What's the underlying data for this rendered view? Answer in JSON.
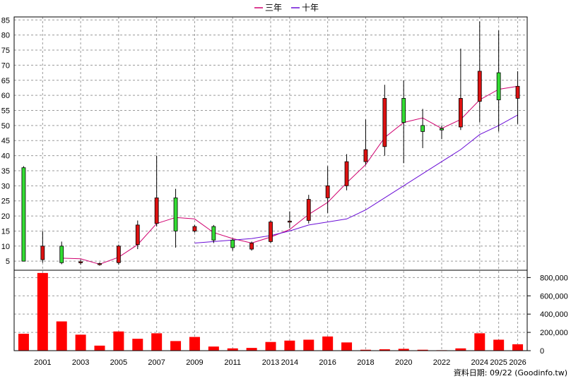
{
  "legend": {
    "items": [
      {
        "label": "三年",
        "color": "#d0006f"
      },
      {
        "label": "十年",
        "color": "#6a0dd6"
      }
    ]
  },
  "footer": {
    "text": "資料日期: 09/22 (Goodinfo.tw)"
  },
  "colors": {
    "up_candle": "#dd1111",
    "down_candle": "#33dd33",
    "volume_bar": "#ff0000",
    "grid": "#9a9a9a"
  },
  "chart_data": {
    "type": "candlestick",
    "price_axis": {
      "min": 2,
      "max": 86,
      "ticks": [
        5,
        10,
        15,
        20,
        25,
        30,
        35,
        40,
        45,
        50,
        55,
        60,
        65,
        70,
        75,
        80,
        85
      ]
    },
    "volume_axis": {
      "min": 0,
      "max": 880000,
      "ticks": [
        0,
        200000,
        400000,
        600000,
        800000
      ],
      "tick_labels": [
        "0",
        "200,000",
        "400,000",
        "600,000",
        "800,000"
      ]
    },
    "x_labels": [
      {
        "year": 2001,
        "label": "2001"
      },
      {
        "year": 2003,
        "label": "2003"
      },
      {
        "year": 2005,
        "label": "2005"
      },
      {
        "year": 2007,
        "label": "2007"
      },
      {
        "year": 2009,
        "label": "2009"
      },
      {
        "year": 2011,
        "label": "2011"
      },
      {
        "year": 2013,
        "label": "2013"
      },
      {
        "year": 2014,
        "label": "2014"
      },
      {
        "year": 2016,
        "label": "2016"
      },
      {
        "year": 2018,
        "label": "2018"
      },
      {
        "year": 2020,
        "label": "2020"
      },
      {
        "year": 2022,
        "label": "2022"
      },
      {
        "year": 2024,
        "label": "2024"
      },
      {
        "year": 2025,
        "label": "2025"
      },
      {
        "year": 2026,
        "label": "2026"
      }
    ],
    "candles": [
      {
        "year": 2000,
        "open": 36,
        "close": 5,
        "high": 36.5,
        "low": 5,
        "volume": 185000
      },
      {
        "year": 2001,
        "open": 5.5,
        "close": 10,
        "high": 15,
        "low": 4.5,
        "volume": 850000
      },
      {
        "year": 2002,
        "open": 10,
        "close": 4.5,
        "high": 11.5,
        "low": 4,
        "volume": 320000
      },
      {
        "year": 2003,
        "open": 4.5,
        "close": 4.8,
        "high": 5.5,
        "low": 3.8,
        "volume": 175000
      },
      {
        "year": 2004,
        "open": 4,
        "close": 4.2,
        "high": 4.6,
        "low": 3.5,
        "volume": 55000
      },
      {
        "year": 2005,
        "open": 4.5,
        "close": 10,
        "high": 10.5,
        "low": 3.8,
        "volume": 210000
      },
      {
        "year": 2006,
        "open": 10.5,
        "close": 17,
        "high": 18.5,
        "low": 9,
        "volume": 130000
      },
      {
        "year": 2007,
        "open": 17.5,
        "close": 26,
        "high": 40,
        "low": 16.5,
        "volume": 190000
      },
      {
        "year": 2008,
        "open": 26,
        "close": 15,
        "high": 29,
        "low": 9.5,
        "volume": 105000
      },
      {
        "year": 2009,
        "open": 15,
        "close": 16.5,
        "high": 17,
        "low": 14.5,
        "volume": 150000
      },
      {
        "year": 2010,
        "open": 16.5,
        "close": 12,
        "high": 17,
        "low": 11,
        "volume": 45000
      },
      {
        "year": 2011,
        "open": 12,
        "close": 9.5,
        "high": 12.5,
        "low": 8.5,
        "volume": 25000
      },
      {
        "year": 2012,
        "open": 9,
        "close": 11,
        "high": 11.5,
        "low": 8.5,
        "volume": 30000
      },
      {
        "year": 2013,
        "open": 11.5,
        "close": 18,
        "high": 18.5,
        "low": 11,
        "volume": 95000
      },
      {
        "year": 2014,
        "open": 18,
        "close": 18.3,
        "high": 21.5,
        "low": 16,
        "volume": 110000
      },
      {
        "year": 2015,
        "open": 18.5,
        "close": 25.5,
        "high": 27,
        "low": 17.5,
        "volume": 120000
      },
      {
        "year": 2016,
        "open": 26,
        "close": 30,
        "high": 36.5,
        "low": 21,
        "volume": 155000
      },
      {
        "year": 2017,
        "open": 30,
        "close": 38,
        "high": 40.5,
        "low": 28.5,
        "volume": 90000
      },
      {
        "year": 2018,
        "open": 38,
        "close": 42,
        "high": 52,
        "low": 37,
        "volume": 10000
      },
      {
        "year": 2019,
        "open": 43,
        "close": 59,
        "high": 63.5,
        "low": 40,
        "volume": 15000
      },
      {
        "year": 2020,
        "open": 59,
        "close": 51,
        "high": 65,
        "low": 37.5,
        "volume": 20000
      },
      {
        "year": 2021,
        "open": 50,
        "close": 48,
        "high": 55.5,
        "low": 42.5,
        "volume": 10000
      },
      {
        "year": 2022,
        "open": 49,
        "close": 48.5,
        "high": 50,
        "low": 45.5,
        "volume": 5000
      },
      {
        "year": 2023,
        "open": 49.5,
        "close": 59,
        "high": 75.5,
        "low": 48.5,
        "volume": 25000
      },
      {
        "year": 2024,
        "open": 58,
        "close": 68,
        "high": 84.5,
        "low": 51,
        "volume": 190000
      },
      {
        "year": 2025,
        "open": 67.5,
        "close": 58.5,
        "high": 81.5,
        "low": 48,
        "volume": 120000
      },
      {
        "year": 2026,
        "open": 59,
        "close": 63,
        "high": 68,
        "low": 50.5,
        "volume": 70000
      }
    ],
    "ma3": [
      {
        "year": 2002,
        "value": 6
      },
      {
        "year": 2003,
        "value": 5.8
      },
      {
        "year": 2004,
        "value": 4
      },
      {
        "year": 2005,
        "value": 6.3
      },
      {
        "year": 2006,
        "value": 10.5
      },
      {
        "year": 2007,
        "value": 17.5
      },
      {
        "year": 2008,
        "value": 19.5
      },
      {
        "year": 2009,
        "value": 19
      },
      {
        "year": 2010,
        "value": 14.5
      },
      {
        "year": 2011,
        "value": 12.5
      },
      {
        "year": 2012,
        "value": 11
      },
      {
        "year": 2013,
        "value": 13
      },
      {
        "year": 2014,
        "value": 15.5
      },
      {
        "year": 2015,
        "value": 20.5
      },
      {
        "year": 2016,
        "value": 24.5
      },
      {
        "year": 2017,
        "value": 31
      },
      {
        "year": 2018,
        "value": 37
      },
      {
        "year": 2019,
        "value": 46
      },
      {
        "year": 2020,
        "value": 51
      },
      {
        "year": 2021,
        "value": 52.5
      },
      {
        "year": 2022,
        "value": 49
      },
      {
        "year": 2023,
        "value": 52
      },
      {
        "year": 2024,
        "value": 58.5
      },
      {
        "year": 2025,
        "value": 62
      },
      {
        "year": 2026,
        "value": 63
      }
    ],
    "ma10": [
      {
        "year": 2009,
        "value": 11
      },
      {
        "year": 2010,
        "value": 11.5
      },
      {
        "year": 2011,
        "value": 12
      },
      {
        "year": 2012,
        "value": 12.5
      },
      {
        "year": 2013,
        "value": 13.5
      },
      {
        "year": 2014,
        "value": 15
      },
      {
        "year": 2015,
        "value": 17
      },
      {
        "year": 2016,
        "value": 18
      },
      {
        "year": 2017,
        "value": 19
      },
      {
        "year": 2018,
        "value": 22
      },
      {
        "year": 2019,
        "value": 26
      },
      {
        "year": 2020,
        "value": 30
      },
      {
        "year": 2021,
        "value": 34
      },
      {
        "year": 2022,
        "value": 38
      },
      {
        "year": 2023,
        "value": 42
      },
      {
        "year": 2024,
        "value": 47
      },
      {
        "year": 2025,
        "value": 50
      },
      {
        "year": 2026,
        "value": 53.5
      }
    ]
  }
}
